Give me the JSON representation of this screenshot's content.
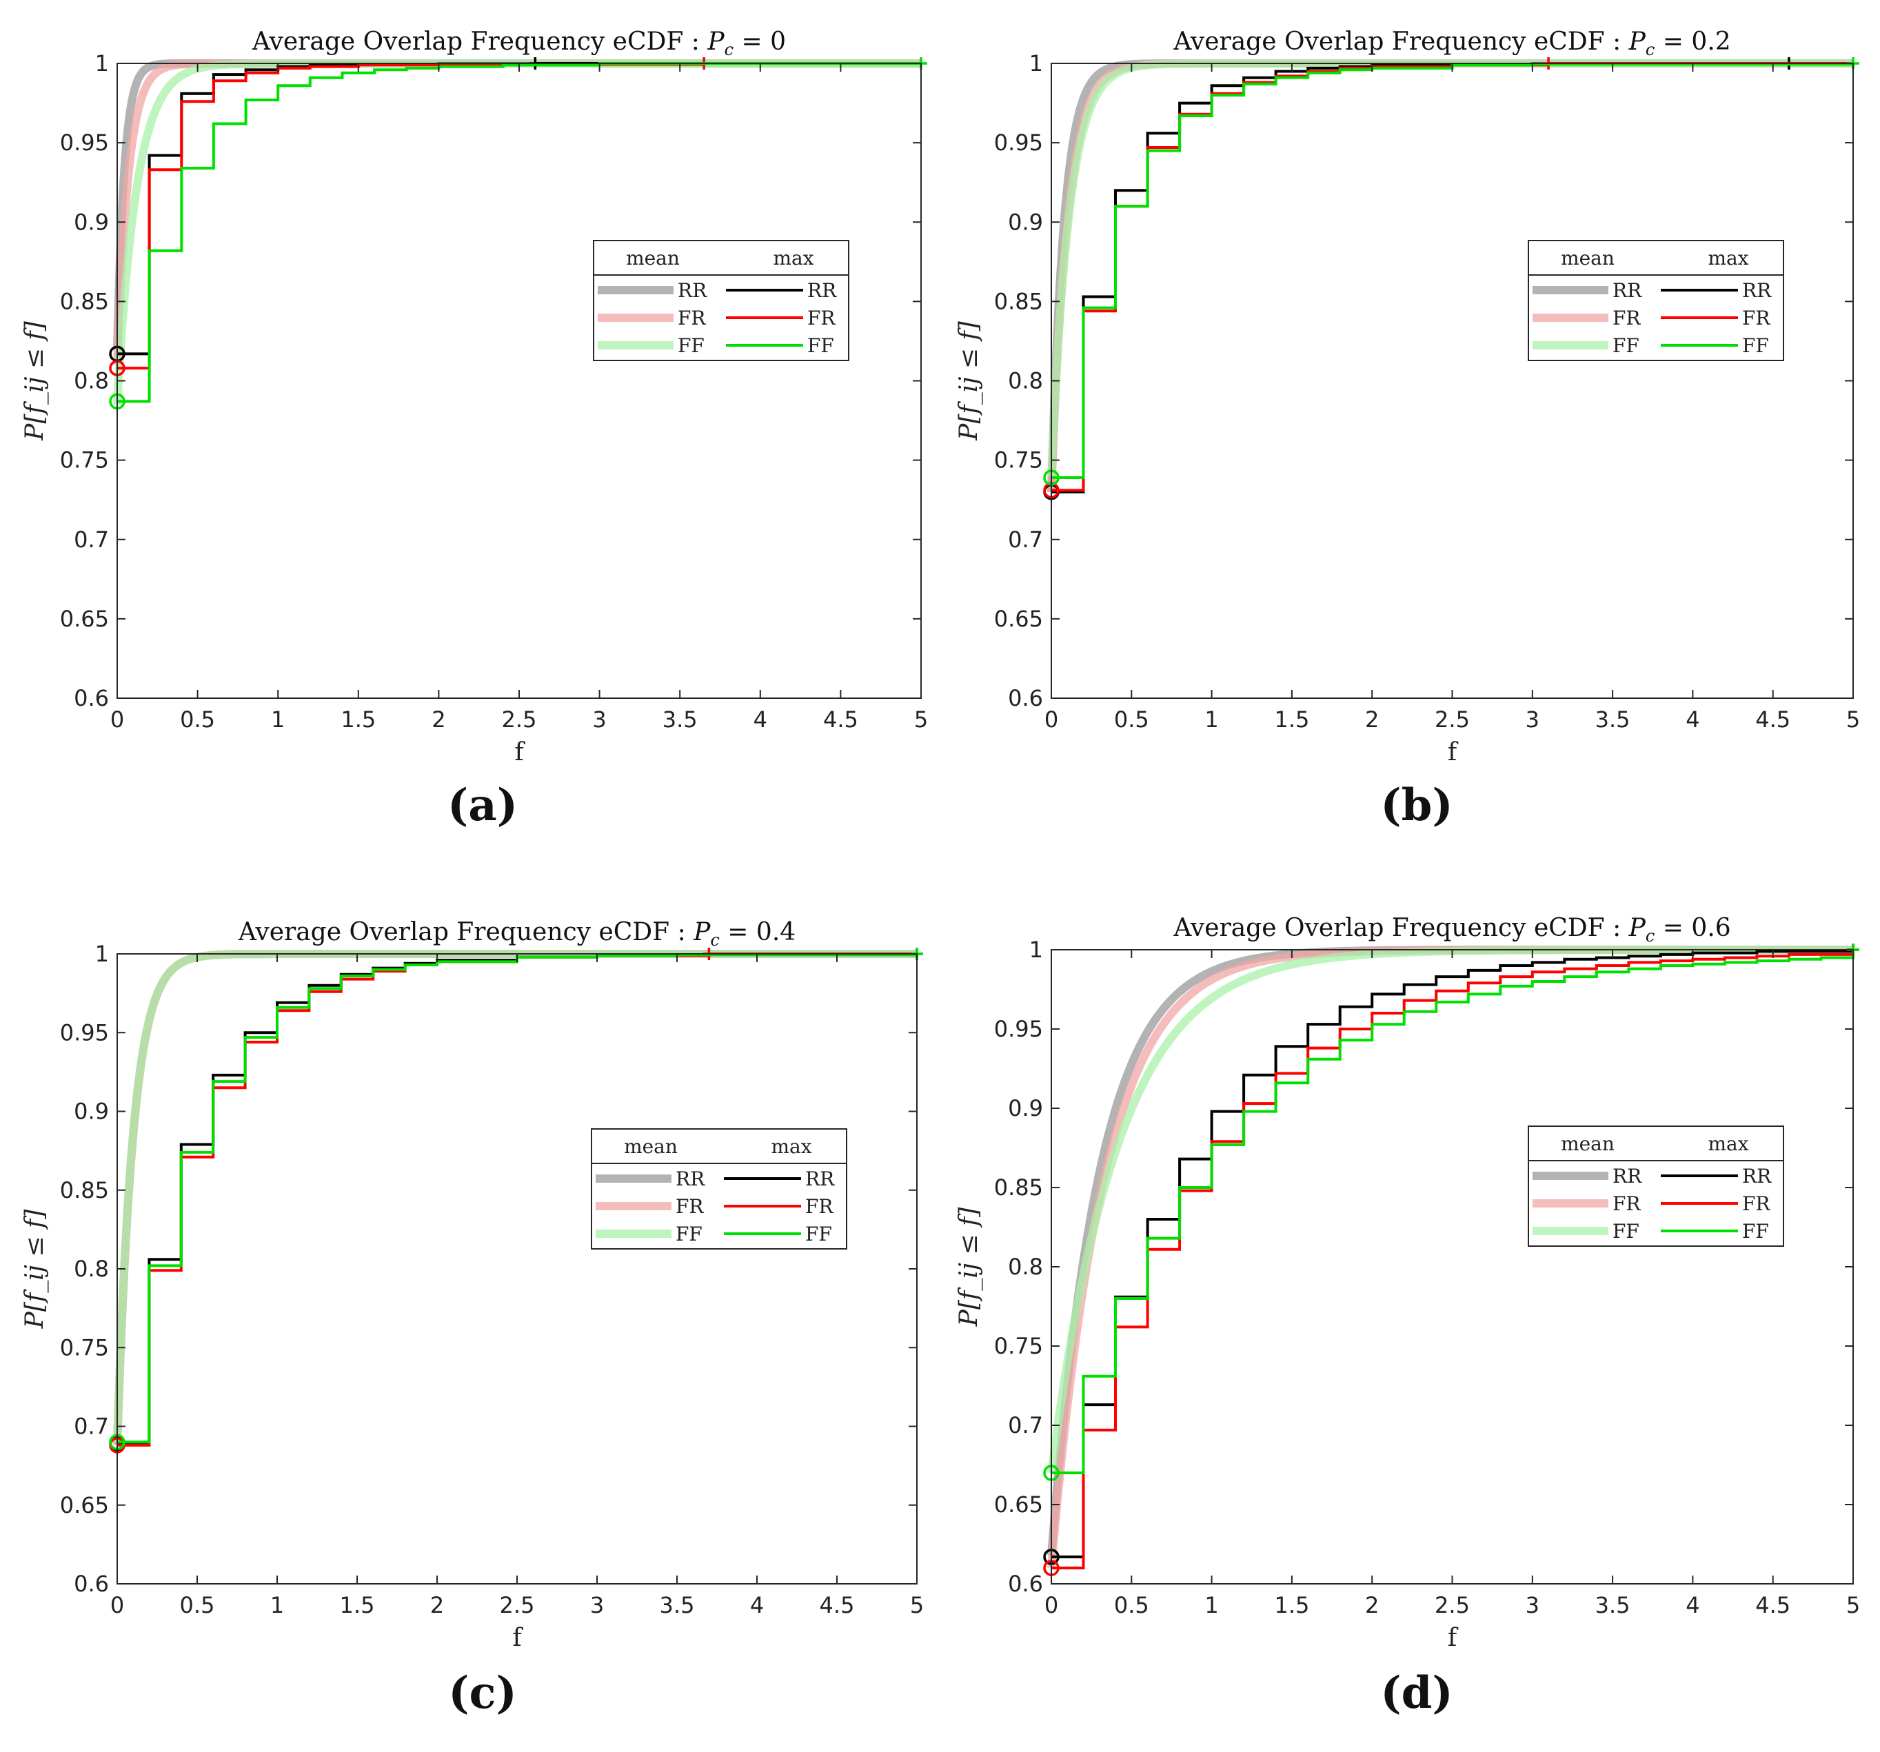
{
  "chart_data": [
    {
      "panel": "a",
      "caption": "(a)",
      "type": "line",
      "title": "Average Overlap Frequency eCDF : Pc = 0",
      "title_prefix": "Average Overlap Frequency eCDF : ",
      "title_var": "P",
      "title_sub": "c",
      "title_value": " = 0",
      "xlabel": "f",
      "ylabel": "P[f_ij ≤ f]",
      "xlim": [
        0,
        5
      ],
      "ylim": [
        0.6,
        1
      ],
      "xticks": [
        "0",
        "0.5",
        "1",
        "1.5",
        "2",
        "2.5",
        "3",
        "3.5",
        "4",
        "4.5",
        "5"
      ],
      "yticks": [
        "0.6",
        "0.65",
        "0.7",
        "0.75",
        "0.8",
        "0.85",
        "0.9",
        "0.95",
        "1"
      ],
      "legend": {
        "placement": "center-right",
        "headers": [
          "mean",
          "max"
        ],
        "mean_entries": [
          "RR",
          "FR",
          "FF"
        ],
        "max_entries": [
          "RR",
          "FR",
          "FF"
        ]
      },
      "mean_series": [
        {
          "name": "RR",
          "color": "#9a9a9a",
          "start": 0.82,
          "scale": 0.045,
          "end_x": 0.5
        },
        {
          "name": "FR",
          "color": "#f2a5a5",
          "start": 0.81,
          "scale": 0.07,
          "end_x": 3.65
        },
        {
          "name": "FF",
          "color": "#a8f0a8",
          "start": 0.785,
          "scale": 0.12,
          "end_x": 2.6
        }
      ],
      "max_series": [
        {
          "name": "RR",
          "color": "#000000",
          "x": [
            0,
            0.2,
            0.4,
            0.6,
            0.8,
            1.0,
            1.2,
            1.5,
            2.0,
            2.6,
            5.0
          ],
          "y": [
            0.817,
            0.942,
            0.981,
            0.993,
            0.996,
            0.998,
            0.999,
            0.9995,
            0.9998,
            1.0,
            1.0
          ],
          "end_x": 2.6
        },
        {
          "name": "FR",
          "color": "#ff0000",
          "x": [
            0,
            0.2,
            0.4,
            0.6,
            0.8,
            1.0,
            1.2,
            1.5,
            2.0,
            3.65,
            5.0
          ],
          "y": [
            0.808,
            0.933,
            0.976,
            0.989,
            0.994,
            0.997,
            0.998,
            0.999,
            0.9995,
            1.0,
            1.0
          ],
          "end_x": 3.65
        },
        {
          "name": "FF",
          "color": "#00e000",
          "x": [
            0,
            0.2,
            0.4,
            0.6,
            0.8,
            1.0,
            1.2,
            1.4,
            1.6,
            1.8,
            2.0,
            2.4,
            3.0,
            5.0
          ],
          "y": [
            0.787,
            0.882,
            0.934,
            0.962,
            0.977,
            0.986,
            0.991,
            0.994,
            0.996,
            0.997,
            0.998,
            0.999,
            1.0,
            1.0
          ],
          "end_x": 5.0
        }
      ]
    },
    {
      "panel": "b",
      "caption": "(b)",
      "type": "line",
      "title": "Average Overlap Frequency eCDF : Pc = 0.2",
      "title_prefix": "Average Overlap Frequency eCDF : ",
      "title_var": "P",
      "title_sub": "c",
      "title_value": " = 0.2",
      "xlabel": "f",
      "ylabel": "P[f_ij ≤ f]",
      "xlim": [
        0,
        5
      ],
      "ylim": [
        0.6,
        1
      ],
      "xticks": [
        "0",
        "0.5",
        "1",
        "1.5",
        "2",
        "2.5",
        "3",
        "3.5",
        "4",
        "4.5",
        "5"
      ],
      "yticks": [
        "0.6",
        "0.65",
        "0.7",
        "0.75",
        "0.8",
        "0.85",
        "0.9",
        "0.95",
        "1"
      ],
      "legend": {
        "placement": "center-right",
        "headers": [
          "mean",
          "max"
        ],
        "mean_entries": [
          "RR",
          "FR",
          "FF"
        ],
        "max_entries": [
          "RR",
          "FR",
          "FF"
        ]
      },
      "mean_series": [
        {
          "name": "RR",
          "color": "#9a9a9a",
          "start": 0.73,
          "scale": 0.08,
          "end_x": 0.87
        },
        {
          "name": "FR",
          "color": "#f2a5a5",
          "start": 0.73,
          "scale": 0.1,
          "end_x": 3.1
        },
        {
          "name": "FF",
          "color": "#a8f0a8",
          "start": 0.74,
          "scale": 0.11,
          "end_x": 4.6
        }
      ],
      "max_series": [
        {
          "name": "RR",
          "color": "#000000",
          "x": [
            0,
            0.2,
            0.4,
            0.6,
            0.8,
            1.0,
            1.2,
            1.4,
            1.6,
            1.8,
            2.0,
            2.5,
            3.0,
            4.6,
            5.0
          ],
          "y": [
            0.73,
            0.853,
            0.92,
            0.956,
            0.975,
            0.986,
            0.991,
            0.995,
            0.997,
            0.998,
            0.999,
            0.9995,
            0.9998,
            1.0,
            1.0
          ],
          "end_x": 4.6
        },
        {
          "name": "FR",
          "color": "#ff0000",
          "x": [
            0,
            0.2,
            0.4,
            0.6,
            0.8,
            1.0,
            1.2,
            1.4,
            1.6,
            1.8,
            2.0,
            2.5,
            3.1,
            5.0
          ],
          "y": [
            0.731,
            0.844,
            0.91,
            0.947,
            0.968,
            0.981,
            0.988,
            0.992,
            0.995,
            0.997,
            0.998,
            0.999,
            1.0,
            1.0
          ],
          "end_x": 3.1
        },
        {
          "name": "FF",
          "color": "#00e000",
          "x": [
            0,
            0.2,
            0.4,
            0.6,
            0.8,
            1.0,
            1.2,
            1.4,
            1.6,
            1.8,
            2.0,
            2.5,
            3.0,
            5.0
          ],
          "y": [
            0.739,
            0.846,
            0.91,
            0.945,
            0.967,
            0.98,
            0.987,
            0.991,
            0.994,
            0.996,
            0.997,
            0.999,
            0.9995,
            1.0
          ],
          "end_x": 5.0
        }
      ]
    },
    {
      "panel": "c",
      "caption": "(c)",
      "type": "line",
      "title": "Average Overlap Frequency eCDF : Pc = 0.4",
      "title_prefix": "Average Overlap Frequency eCDF : ",
      "title_var": "P",
      "title_sub": "c",
      "title_value": " = 0.4",
      "xlabel": "f",
      "ylabel": "P[f_ij ≤ f]",
      "xlim": [
        0,
        5
      ],
      "ylim": [
        0.6,
        1
      ],
      "xticks": [
        "0",
        "0.5",
        "1",
        "1.5",
        "2",
        "2.5",
        "3",
        "3.5",
        "4",
        "4.5",
        "5"
      ],
      "yticks": [
        "0.6",
        "0.65",
        "0.7",
        "0.75",
        "0.8",
        "0.85",
        "0.9",
        "0.95",
        "1"
      ],
      "legend": {
        "placement": "center-right",
        "headers": [
          "mean",
          "max"
        ],
        "mean_entries": [
          "RR",
          "FR",
          "FF"
        ],
        "max_entries": [
          "RR",
          "FR",
          "FF"
        ]
      },
      "mean_series": [
        {
          "name": "RR",
          "color": "#9a9a9a",
          "start": 0.689,
          "scale": 0.1,
          "end_x": 1.25
        },
        {
          "name": "FR",
          "color": "#f2a5a5",
          "start": 0.688,
          "scale": 0.1,
          "end_x": 3.7
        },
        {
          "name": "FF",
          "color": "#a8f0a8",
          "start": 0.69,
          "scale": 0.1,
          "end_x": 5.0
        }
      ],
      "max_series": [
        {
          "name": "RR",
          "color": "#000000",
          "x": [
            0,
            0.2,
            0.4,
            0.6,
            0.8,
            1.0,
            1.2,
            1.4,
            1.6,
            1.8,
            2.0,
            2.5,
            3.0,
            3.5,
            5.0
          ],
          "y": [
            0.689,
            0.806,
            0.879,
            0.923,
            0.95,
            0.969,
            0.98,
            0.987,
            0.991,
            0.994,
            0.996,
            0.998,
            0.999,
            0.9995,
            1.0
          ],
          "end_x": 5.0
        },
        {
          "name": "FR",
          "color": "#ff0000",
          "x": [
            0,
            0.2,
            0.4,
            0.6,
            0.8,
            1.0,
            1.2,
            1.4,
            1.6,
            1.8,
            2.0,
            2.5,
            3.0,
            3.7,
            5.0
          ],
          "y": [
            0.688,
            0.799,
            0.871,
            0.915,
            0.944,
            0.964,
            0.976,
            0.984,
            0.989,
            0.993,
            0.995,
            0.998,
            0.999,
            1.0,
            1.0
          ],
          "end_x": 3.7
        },
        {
          "name": "FF",
          "color": "#00e000",
          "x": [
            0,
            0.2,
            0.4,
            0.6,
            0.8,
            1.0,
            1.2,
            1.4,
            1.6,
            1.8,
            2.0,
            2.5,
            3.0,
            3.5,
            5.0
          ],
          "y": [
            0.69,
            0.802,
            0.874,
            0.919,
            0.947,
            0.966,
            0.978,
            0.986,
            0.99,
            0.993,
            0.995,
            0.998,
            0.999,
            0.9995,
            1.0
          ],
          "end_x": 5.0
        }
      ]
    },
    {
      "panel": "d",
      "caption": "(d)",
      "type": "line",
      "title": "Average Overlap Frequency eCDF : Pc = 0.6",
      "title_prefix": "Average Overlap Frequency eCDF : ",
      "title_var": "P",
      "title_sub": "c",
      "title_value": " = 0.6",
      "xlabel": "f",
      "ylabel": "P[f_ij ≤ f]",
      "xlim": [
        0,
        5
      ],
      "ylim": [
        0.6,
        1
      ],
      "xticks": [
        "0",
        "0.5",
        "1",
        "1.5",
        "2",
        "2.5",
        "3",
        "3.5",
        "4",
        "4.5",
        "5"
      ],
      "yticks": [
        "0.6",
        "0.65",
        "0.7",
        "0.75",
        "0.8",
        "0.85",
        "0.9",
        "0.95",
        "1"
      ],
      "legend": {
        "placement": "center-right",
        "headers": [
          "mean",
          "max"
        ],
        "mean_entries": [
          "RR",
          "FR",
          "FF"
        ],
        "max_entries": [
          "RR",
          "FR",
          "FF"
        ]
      },
      "mean_series": [
        {
          "name": "RR",
          "color": "#9a9a9a",
          "start": 0.618,
          "scale": 0.3,
          "end_x": 5.0
        },
        {
          "name": "FR",
          "color": "#f2a5a5",
          "start": 0.61,
          "scale": 0.33,
          "end_x": 5.0
        },
        {
          "name": "FF",
          "color": "#a8f0a8",
          "start": 0.67,
          "scale": 0.42,
          "end_x": 5.0
        }
      ],
      "max_series": [
        {
          "name": "RR",
          "color": "#000000",
          "x": [
            0,
            0.2,
            0.4,
            0.6,
            0.8,
            1.0,
            1.2,
            1.4,
            1.6,
            1.8,
            2.0,
            2.2,
            2.4,
            2.6,
            2.8,
            3.0,
            3.2,
            3.4,
            3.6,
            3.8,
            4.0,
            4.2,
            4.4,
            4.6,
            4.8,
            5.0
          ],
          "y": [
            0.617,
            0.713,
            0.781,
            0.83,
            0.868,
            0.898,
            0.921,
            0.939,
            0.953,
            0.964,
            0.972,
            0.978,
            0.983,
            0.987,
            0.99,
            0.992,
            0.994,
            0.995,
            0.996,
            0.997,
            0.998,
            0.998,
            0.999,
            0.999,
            0.999,
            0.999
          ],
          "end_x": 5.0
        },
        {
          "name": "FR",
          "color": "#ff0000",
          "x": [
            0,
            0.2,
            0.4,
            0.6,
            0.8,
            1.0,
            1.2,
            1.4,
            1.6,
            1.8,
            2.0,
            2.2,
            2.4,
            2.6,
            2.8,
            3.0,
            3.2,
            3.4,
            3.6,
            3.8,
            4.0,
            4.2,
            4.4,
            4.6,
            4.8,
            5.0
          ],
          "y": [
            0.61,
            0.697,
            0.762,
            0.811,
            0.848,
            0.879,
            0.903,
            0.922,
            0.938,
            0.95,
            0.96,
            0.968,
            0.974,
            0.979,
            0.983,
            0.986,
            0.988,
            0.99,
            0.992,
            0.993,
            0.994,
            0.995,
            0.996,
            0.997,
            0.997,
            0.998
          ],
          "end_x": 5.0
        },
        {
          "name": "FF",
          "color": "#00e000",
          "x": [
            0,
            0.2,
            0.4,
            0.6,
            0.8,
            1.0,
            1.2,
            1.4,
            1.6,
            1.8,
            2.0,
            2.2,
            2.4,
            2.6,
            2.8,
            3.0,
            3.2,
            3.4,
            3.6,
            3.8,
            4.0,
            4.2,
            4.4,
            4.6,
            4.8,
            5.0
          ],
          "y": [
            0.67,
            0.731,
            0.78,
            0.818,
            0.85,
            0.877,
            0.898,
            0.916,
            0.931,
            0.943,
            0.953,
            0.961,
            0.967,
            0.972,
            0.977,
            0.98,
            0.983,
            0.986,
            0.988,
            0.99,
            0.991,
            0.992,
            0.993,
            0.994,
            0.995,
            0.996
          ],
          "end_x": 5.0
        }
      ]
    }
  ]
}
